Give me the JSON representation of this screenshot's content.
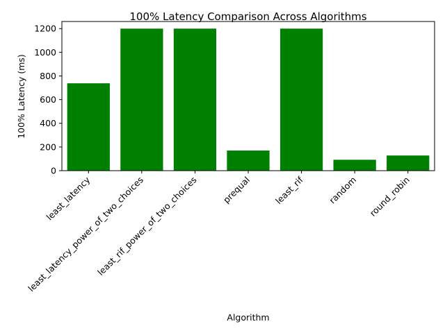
{
  "chart_data": {
    "type": "bar",
    "title": "100% Latency Comparison Across Algorithms",
    "xlabel": "Algorithm",
    "ylabel": "100% Latency (ms)",
    "categories": [
      "least_latency",
      "least_latency_power_of_two_choices",
      "least_rif_power_of_two_choices",
      "prequal",
      "least_rif",
      "random",
      "round_robin"
    ],
    "values": [
      738,
      1200,
      1200,
      170,
      1200,
      92,
      128
    ],
    "ylim": [
      0,
      1260
    ],
    "yticks": [
      0,
      200,
      400,
      600,
      800,
      1000,
      1200
    ],
    "bar_color": "#008000",
    "grid": false,
    "legend": "none"
  }
}
